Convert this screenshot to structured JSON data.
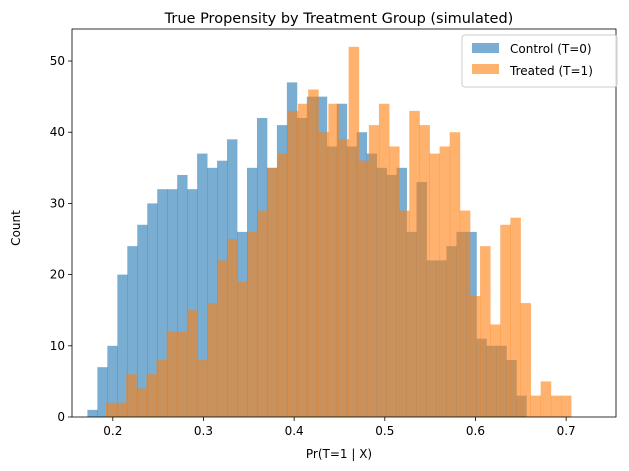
{
  "chart_data": {
    "type": "bar",
    "title": "True Propensity by Treatment Group (simulated)",
    "xlabel": "Pr(T=1 | X)",
    "ylabel": "Count",
    "xlim": [
      0.155,
      0.755
    ],
    "ylim": [
      0,
      54.5
    ],
    "xticks": [
      0.2,
      0.3,
      0.4,
      0.5,
      0.6,
      0.7
    ],
    "xtick_labels": [
      "0.2",
      "0.3",
      "0.4",
      "0.5",
      "0.6",
      "0.7"
    ],
    "yticks": [
      0,
      10,
      20,
      30,
      40,
      50
    ],
    "ytick_labels": [
      "0",
      "10",
      "20",
      "30",
      "40",
      "50"
    ],
    "grid": false,
    "legend_position": "top-right",
    "series": [
      {
        "name": "Control (T=0)",
        "color": "#1f77b4",
        "opacity": 0.6,
        "bin_start": 0.172,
        "bin_width": 0.011,
        "values": [
          1,
          7,
          10,
          20,
          24,
          27,
          30,
          32,
          32,
          34,
          32,
          37,
          35,
          36,
          39,
          26,
          35,
          42,
          35,
          41,
          47,
          42,
          45,
          45,
          38,
          44,
          38,
          40,
          37,
          35,
          34,
          35,
          26,
          33,
          22,
          22,
          24,
          26,
          26,
          11,
          10,
          10,
          8,
          3
        ]
      },
      {
        "name": "Treated (T=1)",
        "color": "#ff7f0e",
        "opacity": 0.6,
        "bin_start": 0.1925,
        "bin_width": 0.01115,
        "values": [
          2,
          2,
          6,
          4,
          6,
          8,
          12,
          12,
          15,
          8,
          16,
          22,
          25,
          19,
          26,
          29,
          35,
          37,
          43,
          44,
          46,
          40,
          44,
          39,
          52,
          36,
          41,
          44,
          38,
          29,
          43,
          41,
          37,
          38,
          40,
          29,
          17,
          24,
          13,
          27,
          28,
          16,
          3,
          5,
          3,
          3
        ]
      }
    ]
  }
}
